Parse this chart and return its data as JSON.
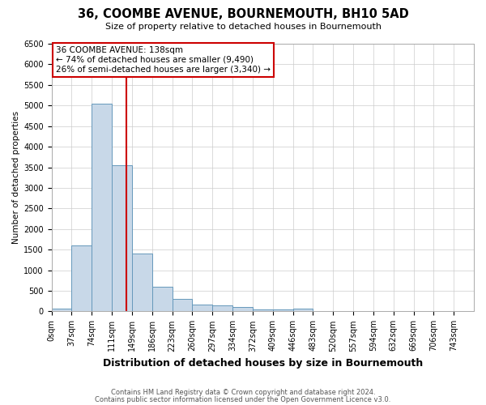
{
  "title": "36, COOMBE AVENUE, BOURNEMOUTH, BH10 5AD",
  "subtitle": "Size of property relative to detached houses in Bournemouth",
  "xlabel": "Distribution of detached houses by size in Bournemouth",
  "ylabel": "Number of detached properties",
  "footnote1": "Contains HM Land Registry data © Crown copyright and database right 2024.",
  "footnote2": "Contains public sector information licensed under the Open Government Licence v3.0.",
  "bin_labels": [
    "0sqm",
    "37sqm",
    "74sqm",
    "111sqm",
    "149sqm",
    "186sqm",
    "223sqm",
    "260sqm",
    "297sqm",
    "334sqm",
    "372sqm",
    "409sqm",
    "446sqm",
    "483sqm",
    "520sqm",
    "557sqm",
    "594sqm",
    "632sqm",
    "669sqm",
    "706sqm",
    "743sqm"
  ],
  "bar_values": [
    75,
    1600,
    5050,
    3550,
    1400,
    600,
    300,
    160,
    150,
    100,
    50,
    40,
    60,
    0,
    0,
    0,
    0,
    0,
    0,
    0,
    0
  ],
  "bar_color": "#c8d8e8",
  "bar_edge_color": "#6699bb",
  "property_line_color": "#cc0000",
  "annotation_text": "36 COOMBE AVENUE: 138sqm\n← 74% of detached houses are smaller (9,490)\n26% of semi-detached houses are larger (3,340) →",
  "annotation_box_color": "#ffffff",
  "annotation_box_edge": "#cc0000",
  "ylim": [
    0,
    6500
  ],
  "bin_width": 37,
  "property_size": 138,
  "background_color": "#ffffff",
  "grid_color": "#cccccc",
  "title_fontsize": 10.5,
  "subtitle_fontsize": 8,
  "ylabel_fontsize": 7.5,
  "xlabel_fontsize": 9,
  "tick_fontsize": 7,
  "annotation_fontsize": 7.5,
  "footnote_fontsize": 6
}
